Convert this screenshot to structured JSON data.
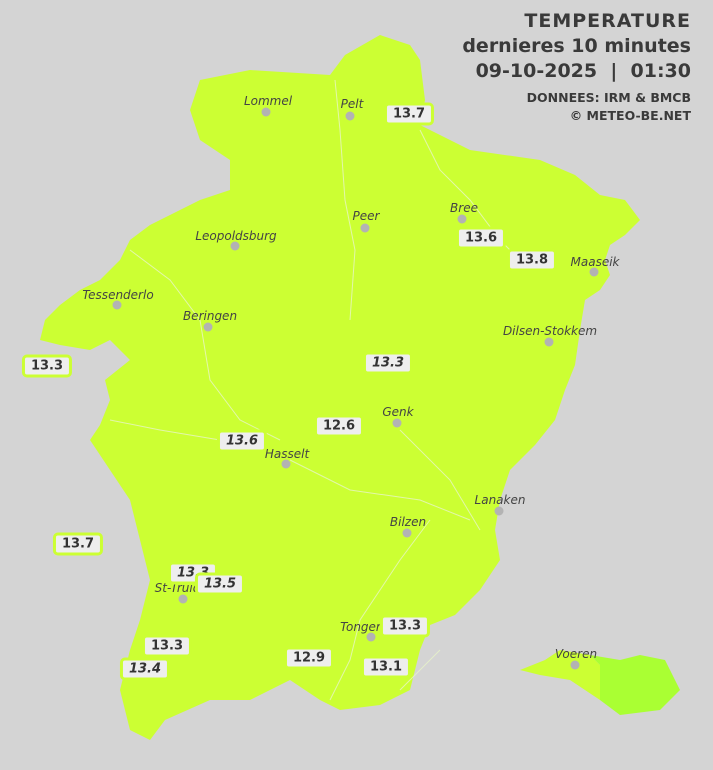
{
  "header": {
    "title": "TEMPERATURE",
    "subtitle": "dernieres 10 minutes",
    "datetime": "09-10-2025  |  01:30",
    "source": "DONNEES: IRM & BMCB",
    "copyright": "© METEO-BE.NET"
  },
  "colors": {
    "region": "#ccff33",
    "voeren_east": "#aaff33",
    "background": "#d4d4d4",
    "label_border": "#ccff33"
  },
  "cities": [
    {
      "name": "Lommel"
    },
    {
      "name": "Pelt"
    },
    {
      "name": "Peer"
    },
    {
      "name": "Bree"
    },
    {
      "name": "Leopoldsburg"
    },
    {
      "name": "Maaseik"
    },
    {
      "name": "Tessenderlo"
    },
    {
      "name": "Beringen"
    },
    {
      "name": "Dilsen-Stokkem"
    },
    {
      "name": "Genk"
    },
    {
      "name": "Hasselt"
    },
    {
      "name": "Lanaken"
    },
    {
      "name": "Bilzen"
    },
    {
      "name": "St-Truiden"
    },
    {
      "name": "Tongeren"
    },
    {
      "name": "Voeren"
    }
  ],
  "readings": [
    {
      "value": "13.7",
      "italic": false
    },
    {
      "value": "13.6",
      "italic": false
    },
    {
      "value": "13.8",
      "italic": false
    },
    {
      "value": "13.3",
      "italic": false
    },
    {
      "value": "13.3",
      "italic": true
    },
    {
      "value": "12.6",
      "italic": false
    },
    {
      "value": "13.6",
      "italic": true
    },
    {
      "value": "13.7",
      "italic": false
    },
    {
      "value": "13.3",
      "italic": true
    },
    {
      "value": "13.5",
      "italic": true
    },
    {
      "value": "13.3",
      "italic": false
    },
    {
      "value": "13.4",
      "italic": true
    },
    {
      "value": "12.9",
      "italic": false
    },
    {
      "value": "13.3",
      "italic": false
    },
    {
      "value": "13.1",
      "italic": false
    }
  ]
}
